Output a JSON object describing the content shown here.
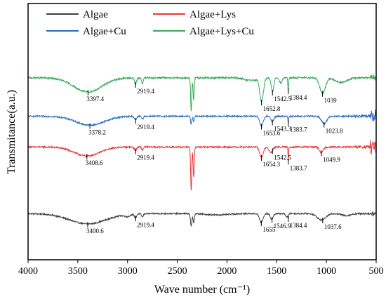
{
  "chart_data": {
    "type": "line",
    "xlabel": "Wave number (cm⁻¹)",
    "ylabel": "Transmitance(a.u.)",
    "xlim": [
      4000,
      500
    ],
    "x_reversed": true,
    "x_ticks": [
      4000,
      3500,
      3000,
      2500,
      2000,
      1500,
      1000,
      500
    ],
    "y_ticks_shown": false,
    "grid": false,
    "legend_position": "top-left",
    "legend_columns": 2,
    "series": [
      {
        "name": "Algae",
        "color": "#404040",
        "baseline": 18,
        "noise": 0.5,
        "hf_noise": [
          [
            550,
            0.5
          ],
          [
            700,
            0.15
          ]
        ],
        "dips": [
          [
            3400,
            4,
            260
          ],
          [
            3000,
            0.8,
            40
          ],
          [
            2920,
            1.5,
            15
          ],
          [
            2850,
            1.3,
            12
          ],
          [
            2360,
            5,
            10
          ],
          [
            2335,
            3.5,
            9
          ],
          [
            2100,
            0.5,
            150
          ],
          [
            1655,
            3.5,
            25
          ],
          [
            1550,
            2.2,
            20
          ],
          [
            1400,
            1.2,
            15
          ],
          [
            1384,
            1.5,
            6
          ],
          [
            1050,
            2.5,
            60
          ],
          [
            800,
            0.8,
            60
          ]
        ],
        "peaks": [
          {
            "wn": 3400.6,
            "label": "3400.6"
          },
          {
            "wn": 2919.4,
            "label": "2919.4"
          },
          {
            "wn": 1655,
            "label": "1655"
          },
          {
            "wn": 1546.9,
            "label": "1546.9"
          },
          {
            "wn": 1384.4,
            "label": "1384.4"
          },
          {
            "wn": 1037.6,
            "label": "1037.6"
          }
        ]
      },
      {
        "name": "Algae+Lys",
        "color": "#e8393a",
        "baseline": 44,
        "noise": 0.6,
        "hf_noise": [
          [
            560,
            1.4
          ],
          [
            720,
            0.3
          ]
        ],
        "dips": [
          [
            3408,
            3.5,
            180
          ],
          [
            2920,
            1.4,
            15
          ],
          [
            2850,
            1.2,
            12
          ],
          [
            2360,
            17,
            8
          ],
          [
            2335,
            12,
            8
          ],
          [
            1654,
            4,
            25
          ],
          [
            1560,
            2.2,
            25
          ],
          [
            1384,
            5.5,
            4
          ],
          [
            1050,
            2.2,
            25
          ]
        ],
        "peaks": [
          {
            "wn": 3408.6,
            "label": "3408.6"
          },
          {
            "wn": 2919.4,
            "label": "2919.4"
          },
          {
            "wn": 1654.3,
            "label": "1654.3"
          },
          {
            "wn": 1542.5,
            "label": "1542.5"
          },
          {
            "wn": 1383.7,
            "label": "1383.7"
          },
          {
            "wn": 1049.9,
            "label": "1049.9"
          }
        ]
      },
      {
        "name": "Algae+Cu",
        "color": "#2b6cc4",
        "baseline": 56,
        "noise": 0.6,
        "hf_noise": [
          [
            560,
            1.3
          ],
          [
            720,
            0.3
          ]
        ],
        "dips": [
          [
            3378,
            3.5,
            200
          ],
          [
            2920,
            1.5,
            15
          ],
          [
            2850,
            1.2,
            12
          ],
          [
            2360,
            3.2,
            8
          ],
          [
            2335,
            2,
            8
          ],
          [
            1654,
            3.8,
            25
          ],
          [
            1545,
            2.2,
            20
          ],
          [
            1384,
            2.5,
            5
          ],
          [
            1024,
            3,
            35
          ]
        ],
        "peaks": [
          {
            "wn": 3378.2,
            "label": "3378.2"
          },
          {
            "wn": 2919.4,
            "label": "2919.4"
          },
          {
            "wn": 1653.6,
            "label": "1653.6"
          },
          {
            "wn": 1543.3,
            "label": "1543.3"
          },
          {
            "wn": 1383.7,
            "label": "1383.7"
          },
          {
            "wn": 1023.8,
            "label": "1023.8"
          }
        ]
      },
      {
        "name": "Algae+Lys+Cu",
        "color": "#3aaa5c",
        "baseline": 71,
        "noise": 0.7,
        "hf_noise": [
          [
            560,
            0.6
          ]
        ],
        "dips": [
          [
            3400,
            5.5,
            200
          ],
          [
            2920,
            2.5,
            15
          ],
          [
            2850,
            2.2,
            12
          ],
          [
            2360,
            13,
            8
          ],
          [
            2335,
            9,
            8
          ],
          [
            1750,
            1,
            100
          ],
          [
            1652,
            9,
            25
          ],
          [
            1542,
            5.5,
            18
          ],
          [
            1460,
            2,
            20
          ],
          [
            1384,
            5,
            6
          ],
          [
            1039,
            6,
            40
          ],
          [
            850,
            1.8,
            80
          ]
        ],
        "peaks": [
          {
            "wn": 3397.4,
            "label": "3397.4"
          },
          {
            "wn": 2919.4,
            "label": "2919.4"
          },
          {
            "wn": 1652.8,
            "label": "1652.8"
          },
          {
            "wn": 1542.5,
            "label": "1542.5"
          },
          {
            "wn": 1384.4,
            "label": "1384.4"
          },
          {
            "wn": 1039,
            "label": "1039"
          }
        ]
      }
    ]
  }
}
